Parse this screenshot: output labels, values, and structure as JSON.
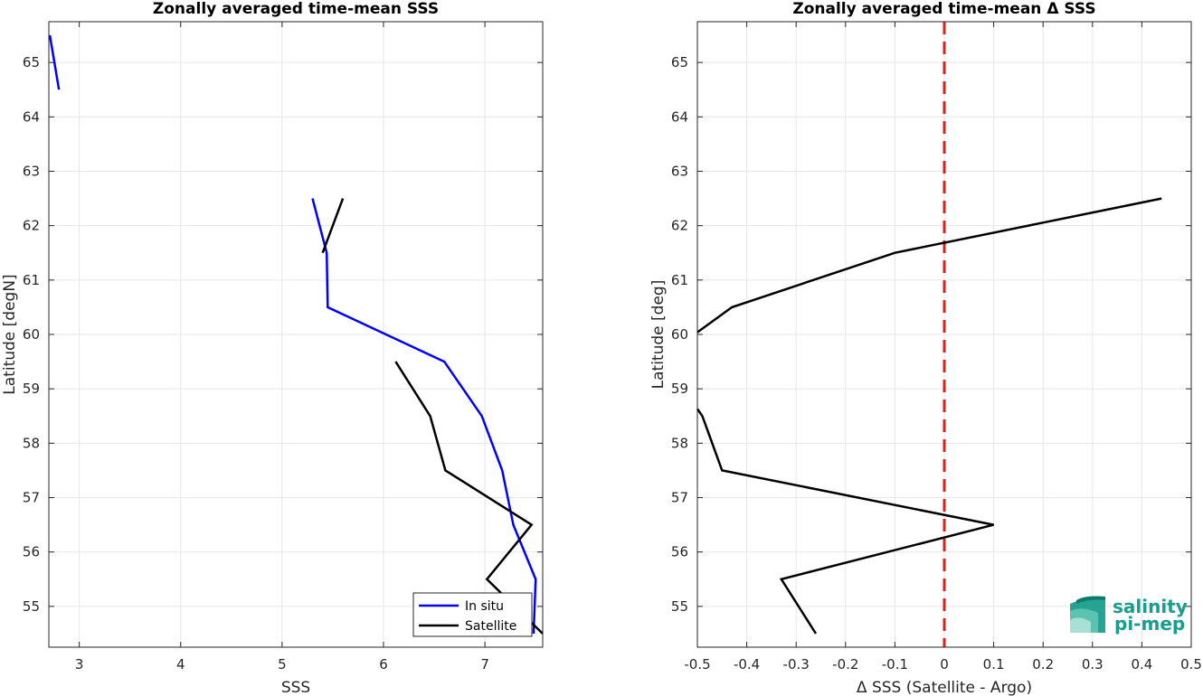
{
  "chart_data": [
    {
      "type": "line",
      "title": "Zonally averaged time-mean SSS",
      "xlabel": "SSS",
      "ylabel": "Latitude [degN]",
      "xlim": [
        2.7,
        7.57
      ],
      "ylim": [
        54.25,
        65.75
      ],
      "xticks": [
        3,
        4,
        5,
        6,
        7
      ],
      "yticks": [
        55,
        56,
        57,
        58,
        59,
        60,
        61,
        62,
        63,
        64,
        65
      ],
      "grid": true,
      "legend": "bottom-right",
      "series": [
        {
          "name": "In situ",
          "color": "#0000ff",
          "segments": [
            [
              [
                2.71,
                65.5
              ],
              [
                2.8,
                64.5
              ]
            ],
            [
              [
                5.3,
                62.5
              ],
              [
                5.44,
                61.5
              ],
              [
                5.45,
                60.5
              ],
              [
                6.6,
                59.5
              ],
              [
                6.97,
                58.5
              ],
              [
                7.17,
                57.5
              ],
              [
                7.28,
                56.5
              ],
              [
                7.5,
                55.5
              ],
              [
                7.48,
                54.5
              ]
            ]
          ]
        },
        {
          "name": "Satellite",
          "color": "#000000",
          "segments": [
            [
              [
                5.6,
                62.5
              ],
              [
                5.4,
                61.5
              ]
            ],
            [
              [
                6.12,
                59.5
              ],
              [
                6.46,
                58.5
              ],
              [
                6.61,
                57.5
              ],
              [
                7.46,
                56.5
              ],
              [
                7.02,
                55.5
              ],
              [
                7.57,
                54.5
              ]
            ]
          ]
        }
      ]
    },
    {
      "type": "line",
      "title": "Zonally averaged time-mean Δ SSS",
      "xlabel": "Δ SSS (Satellite - Argo)",
      "ylabel": "Latitude [deg]",
      "xlim": [
        -0.5,
        0.5
      ],
      "ylim": [
        54.25,
        65.75
      ],
      "xticks": [
        -0.5,
        -0.4,
        -0.3,
        -0.2,
        -0.1,
        0,
        0.1,
        0.2,
        0.3,
        0.4,
        0.5
      ],
      "yticks": [
        55,
        56,
        57,
        58,
        59,
        60,
        61,
        62,
        63,
        64,
        65
      ],
      "grid": true,
      "reference_line": {
        "x": 0,
        "color": "#e0201c",
        "style": "dashed"
      },
      "series": [
        {
          "color": "#000000",
          "segments": [
            [
              [
                0.44,
                62.5
              ],
              [
                -0.1,
                61.5
              ],
              [
                -0.43,
                60.5
              ],
              [
                -0.5,
                60.04
              ]
            ],
            [
              [
                -0.5,
                58.63
              ],
              [
                -0.49,
                58.5
              ],
              [
                -0.45,
                57.5
              ],
              [
                0.1,
                56.5
              ],
              [
                -0.33,
                55.5
              ],
              [
                -0.26,
                54.5
              ]
            ]
          ]
        }
      ]
    }
  ],
  "logo": {
    "line1": "salinity",
    "line2": "pi-mep",
    "color": "#1a9e8c"
  }
}
